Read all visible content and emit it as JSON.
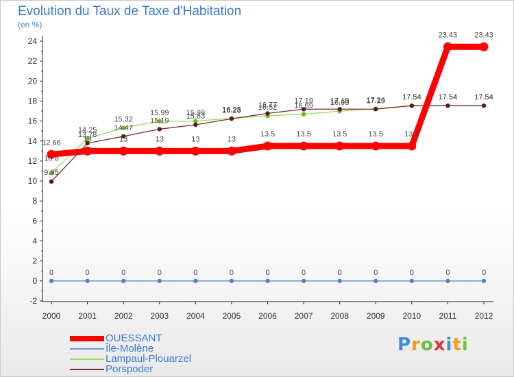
{
  "chart_data": {
    "type": "line",
    "title": "Evolution du Taux de Taxe d'Habitation",
    "ylabel": "(en %)",
    "xlabel": "",
    "x": [
      "2000",
      "2001",
      "2002",
      "2003",
      "2004",
      "2005",
      "2006",
      "2007",
      "2008",
      "2009",
      "2010",
      "2011",
      "2012"
    ],
    "ylim": [
      -2,
      24
    ],
    "yticks": [
      -2,
      0,
      2,
      4,
      6,
      8,
      10,
      12,
      14,
      16,
      18,
      20,
      22,
      24
    ],
    "grid": false,
    "legend_position": "bottom-left",
    "series": [
      {
        "name": "OUESSANT",
        "color": "#ff0000",
        "values": [
          12.66,
          13,
          13,
          13,
          13,
          13,
          13.5,
          13.5,
          13.5,
          13.5,
          13.5,
          23.43,
          23.43
        ],
        "labels": [
          "12.66",
          "13",
          "13",
          "13",
          "13",
          "13",
          "13.5",
          "13.5",
          "13.5",
          "13.5",
          "13.5",
          "23.43",
          "23.43"
        ]
      },
      {
        "name": "Île-Molène",
        "color": "#6699cc",
        "values": [
          0,
          0,
          0,
          0,
          0,
          0,
          0,
          0,
          0,
          0,
          0,
          0,
          0
        ],
        "labels": [
          "0",
          "0",
          "0",
          "0",
          "0",
          "0",
          "0",
          "0",
          "0",
          "0",
          "0",
          "0",
          "0"
        ]
      },
      {
        "name": "Lampaul-Plouarzel",
        "color": "#99dd55",
        "values": [
          10.8,
          14.25,
          15.32,
          15.99,
          15.99,
          16.28,
          16.52,
          16.69,
          16.99,
          17.24,
          17.54,
          17.54,
          17.54
        ],
        "labels": [
          "10.8",
          "14.25",
          "15.32",
          "15.99",
          "15.99",
          "16.28",
          "16.52",
          "16.69",
          "16.99",
          "17.24",
          "17.54",
          "17.54",
          "17.54"
        ]
      },
      {
        "name": "Porspoder",
        "color": "#7a2a2a",
        "values": [
          9.95,
          13.78,
          14.47,
          15.19,
          15.63,
          16.23,
          16.77,
          17.19,
          17.19,
          17.19,
          17.54,
          17.54,
          17.54
        ],
        "labels": [
          "9.95",
          "13.78",
          "14.47",
          "15.19",
          "15.63",
          "16.23",
          "16.77",
          "17.19",
          "17.19",
          "17.19",
          "17.54",
          "17.54",
          "17.54"
        ]
      }
    ]
  },
  "logo": {
    "letters": [
      "P",
      "r",
      "o",
      "x",
      "i",
      "t",
      "i"
    ],
    "colors": [
      "#3a8fd8",
      "#f39a1f",
      "#6cc04a",
      "#e0352b",
      "#3a8fd8",
      "#f39a1f",
      "#6cc04a"
    ]
  }
}
